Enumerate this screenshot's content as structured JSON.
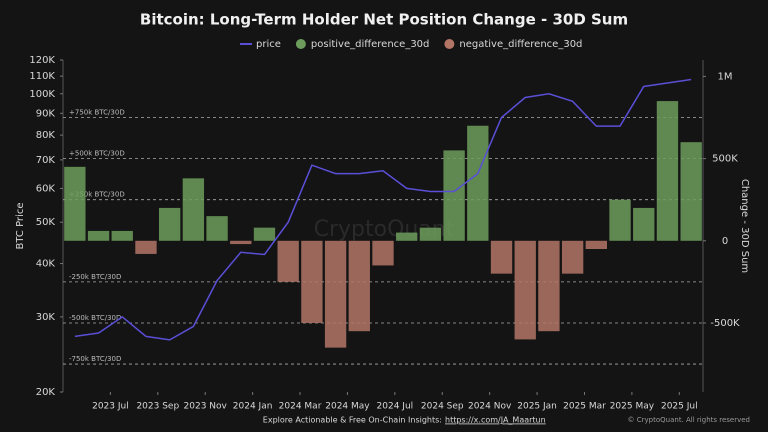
{
  "chart_data": {
    "type": "bar-line",
    "title": "Bitcoin: Long-Term Holder Net Position Change - 30D Sum",
    "ylabel": "BTC Price",
    "y2label": "Change - 30D Sum",
    "watermark": "CryptoQuant",
    "footer_text": "Explore Actionable & Free On-Chain Insights:",
    "footer_link": "https://x.com/JA_Maartun",
    "copyright": "© CryptoQuant. All rights reserved",
    "x": [
      "2023-05",
      "2023-06",
      "2023-07",
      "2023-08",
      "2023-09",
      "2023-10",
      "2023-11",
      "2023-12",
      "2024-01",
      "2024-02",
      "2024-03",
      "2024-04",
      "2024-05",
      "2024-06",
      "2024-07",
      "2024-08",
      "2024-09",
      "2024-10",
      "2024-11",
      "2024-12",
      "2025-01",
      "2025-02",
      "2025-03",
      "2025-04",
      "2025-05",
      "2025-06",
      "2025-07"
    ],
    "xticks": [
      {
        "value": "2023-07",
        "label": "2023 Jul"
      },
      {
        "value": "2023-09",
        "label": "2023 Sep"
      },
      {
        "value": "2023-11",
        "label": "2023 Nov"
      },
      {
        "value": "2024-01",
        "label": "2024 Jan"
      },
      {
        "value": "2024-03",
        "label": "2024 Mar"
      },
      {
        "value": "2024-05",
        "label": "2024 May"
      },
      {
        "value": "2024-07",
        "label": "2024 Jul"
      },
      {
        "value": "2024-09",
        "label": "2024 Sep"
      },
      {
        "value": "2024-11",
        "label": "2024 Nov"
      },
      {
        "value": "2025-01",
        "label": "2025 Jan"
      },
      {
        "value": "2025-03",
        "label": "2025 Mar"
      },
      {
        "value": "2025-05",
        "label": "2025 May"
      },
      {
        "value": "2025-07",
        "label": "2025 Jul"
      }
    ],
    "ylog": true,
    "ylim": [
      20000,
      120000
    ],
    "yticks": [
      {
        "value": 20000,
        "label": "20K"
      },
      {
        "value": 30000,
        "label": "30K"
      },
      {
        "value": 40000,
        "label": "40K"
      },
      {
        "value": 50000,
        "label": "50K"
      },
      {
        "value": 60000,
        "label": "60K"
      },
      {
        "value": 70000,
        "label": "70K"
      },
      {
        "value": 80000,
        "label": "80K"
      },
      {
        "value": 90000,
        "label": "90K"
      },
      {
        "value": 100000,
        "label": "100K"
      },
      {
        "value": 110000,
        "label": "110K"
      },
      {
        "value": 120000,
        "label": "120K"
      }
    ],
    "y2lim": [
      -920000,
      1100000
    ],
    "y2ticks": [
      {
        "value": 1000000,
        "label": "1M"
      },
      {
        "value": 500000,
        "label": "500K"
      },
      0,
      {
        "value": -500000,
        "label": "-500K"
      }
    ],
    "reference_lines": [
      {
        "value": 750000,
        "label": "+750k BTC/30D"
      },
      {
        "value": 500000,
        "label": "+500k BTC/30D"
      },
      {
        "value": 250000,
        "label": "+250k BTC/30D"
      },
      {
        "value": -250000,
        "label": "-250k BTC/30D"
      },
      {
        "value": -500000,
        "label": "-500k BTC/30D"
      },
      {
        "value": -750000,
        "label": "-750k BTC/30D"
      }
    ],
    "series": [
      {
        "name": "price",
        "type": "line",
        "color": "#5a4fd6",
        "values": [
          27000,
          27500,
          30000,
          27000,
          26500,
          28500,
          36500,
          42500,
          42000,
          50000,
          68000,
          65000,
          65000,
          66000,
          60000,
          59000,
          59000,
          65000,
          88000,
          98000,
          100000,
          96000,
          84000,
          84000,
          104000,
          106000,
          108000
        ]
      },
      {
        "name": "positive_difference_30d",
        "type": "bar",
        "axis": "y2",
        "color": "#6c9d5c",
        "values": [
          450000,
          60000,
          60000,
          null,
          200000,
          380000,
          150000,
          null,
          80000,
          null,
          null,
          null,
          null,
          null,
          50000,
          80000,
          550000,
          700000,
          null,
          null,
          null,
          null,
          null,
          250000,
          200000,
          850000,
          600000
        ]
      },
      {
        "name": "negative_difference_30d",
        "type": "bar",
        "axis": "y2",
        "color": "#b37666",
        "values": [
          null,
          null,
          null,
          -80000,
          null,
          null,
          null,
          -20000,
          null,
          -250000,
          -500000,
          -650000,
          -550000,
          -150000,
          null,
          null,
          null,
          null,
          -200000,
          -600000,
          -550000,
          -200000,
          -50000,
          null,
          null,
          null,
          null
        ]
      }
    ]
  }
}
